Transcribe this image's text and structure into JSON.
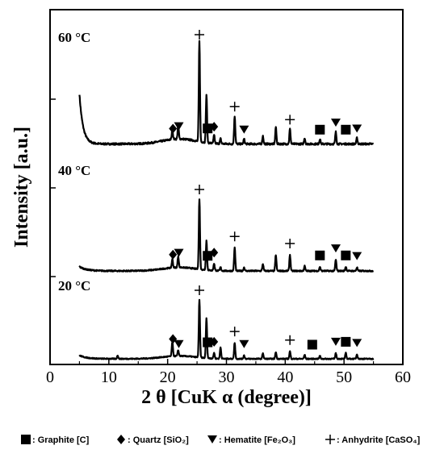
{
  "chart_data": {
    "type": "line",
    "xlabel": "2 θ  [CuK α  (degree)]",
    "ylabel": "Intensity [a.u.]",
    "xlim": [
      0,
      60
    ],
    "x_ticks": [
      0,
      10,
      20,
      30,
      40,
      50,
      60
    ],
    "y_tick_labels_shown": false,
    "series": [
      {
        "name": "60 °C",
        "baseline_x": [
          5,
          5.6,
          7,
          10,
          15,
          19,
          21,
          25,
          30,
          35,
          40,
          45,
          50,
          55
        ],
        "peaks": [
          {
            "x": 20.8,
            "h": 0.1
          },
          {
            "x": 21.8,
            "h": 0.14
          },
          {
            "x": 25.4,
            "h": 1.0
          },
          {
            "x": 26.6,
            "h": 0.48
          },
          {
            "x": 27.9,
            "h": 0.08
          },
          {
            "x": 29.0,
            "h": 0.05
          },
          {
            "x": 31.4,
            "h": 0.28
          },
          {
            "x": 33.0,
            "h": 0.05
          },
          {
            "x": 36.2,
            "h": 0.08
          },
          {
            "x": 38.4,
            "h": 0.17
          },
          {
            "x": 40.8,
            "h": 0.15
          },
          {
            "x": 43.3,
            "h": 0.06
          },
          {
            "x": 45.9,
            "h": 0.05
          },
          {
            "x": 48.6,
            "h": 0.12
          },
          {
            "x": 52.2,
            "h": 0.06
          }
        ]
      },
      {
        "name": "40 °C",
        "peaks": [
          {
            "x": 20.8,
            "h": 0.12
          },
          {
            "x": 21.8,
            "h": 0.16
          },
          {
            "x": 25.4,
            "h": 1.0
          },
          {
            "x": 26.6,
            "h": 0.42
          },
          {
            "x": 27.9,
            "h": 0.1
          },
          {
            "x": 29.0,
            "h": 0.05
          },
          {
            "x": 31.4,
            "h": 0.33
          },
          {
            "x": 33.0,
            "h": 0.05
          },
          {
            "x": 36.2,
            "h": 0.1
          },
          {
            "x": 38.4,
            "h": 0.23
          },
          {
            "x": 40.8,
            "h": 0.23
          },
          {
            "x": 43.3,
            "h": 0.07
          },
          {
            "x": 45.9,
            "h": 0.06
          },
          {
            "x": 48.6,
            "h": 0.16
          },
          {
            "x": 50.3,
            "h": 0.06
          },
          {
            "x": 52.2,
            "h": 0.05
          }
        ]
      },
      {
        "name": "20 °C",
        "peaks": [
          {
            "x": 11.5,
            "h": 0.06
          },
          {
            "x": 20.8,
            "h": 0.25
          },
          {
            "x": 21.8,
            "h": 0.1
          },
          {
            "x": 25.4,
            "h": 1.0
          },
          {
            "x": 26.6,
            "h": 0.7
          },
          {
            "x": 27.9,
            "h": 0.1
          },
          {
            "x": 29.0,
            "h": 0.2
          },
          {
            "x": 31.4,
            "h": 0.28
          },
          {
            "x": 33.0,
            "h": 0.06
          },
          {
            "x": 36.2,
            "h": 0.1
          },
          {
            "x": 38.4,
            "h": 0.12
          },
          {
            "x": 40.8,
            "h": 0.13
          },
          {
            "x": 43.3,
            "h": 0.07
          },
          {
            "x": 45.9,
            "h": 0.05
          },
          {
            "x": 48.6,
            "h": 0.1
          },
          {
            "x": 50.3,
            "h": 0.1
          },
          {
            "x": 52.2,
            "h": 0.08
          }
        ]
      }
    ],
    "annotations": [
      {
        "series": "60 °C",
        "markers": [
          {
            "sym": "diamond",
            "x": 20.9
          },
          {
            "sym": "triangle",
            "x": 21.9
          },
          {
            "sym": "plus",
            "x": 25.4
          },
          {
            "sym": "square",
            "x": 26.8
          },
          {
            "sym": "diamond",
            "x": 27.9
          },
          {
            "sym": "plus",
            "x": 31.4
          },
          {
            "sym": "triangle",
            "x": 33.0
          },
          {
            "sym": "plus",
            "x": 40.8
          },
          {
            "sym": "square",
            "x": 45.9
          },
          {
            "sym": "triangle",
            "x": 48.6
          },
          {
            "sym": "square",
            "x": 50.3
          },
          {
            "sym": "triangle",
            "x": 52.2
          }
        ]
      },
      {
        "series": "40 °C",
        "markers": [
          {
            "sym": "diamond",
            "x": 20.9
          },
          {
            "sym": "triangle",
            "x": 21.9
          },
          {
            "sym": "plus",
            "x": 25.4
          },
          {
            "sym": "square",
            "x": 26.8
          },
          {
            "sym": "diamond",
            "x": 27.9
          },
          {
            "sym": "plus",
            "x": 31.4
          },
          {
            "sym": "plus",
            "x": 40.8
          },
          {
            "sym": "square",
            "x": 45.9
          },
          {
            "sym": "triangle",
            "x": 48.6
          },
          {
            "sym": "square",
            "x": 50.3
          },
          {
            "sym": "triangle",
            "x": 52.2
          }
        ]
      },
      {
        "series": "20 °C",
        "markers": [
          {
            "sym": "diamond",
            "x": 20.9
          },
          {
            "sym": "triangle",
            "x": 21.9
          },
          {
            "sym": "plus",
            "x": 25.4
          },
          {
            "sym": "square",
            "x": 26.8
          },
          {
            "sym": "diamond",
            "x": 27.9
          },
          {
            "sym": "plus",
            "x": 31.4
          },
          {
            "sym": "triangle",
            "x": 33.0
          },
          {
            "sym": "plus",
            "x": 40.8
          },
          {
            "sym": "square",
            "x": 44.6
          },
          {
            "sym": "triangle",
            "x": 48.6
          },
          {
            "sym": "square",
            "x": 50.3
          },
          {
            "sym": "triangle",
            "x": 52.2
          }
        ]
      }
    ],
    "legend": [
      {
        "sym": "square",
        "text": ": Graphite [C]"
      },
      {
        "sym": "diamond",
        "text": ": Quartz [SiO₂]"
      },
      {
        "sym": "triangle",
        "text": ": Hematite [Fe₂O₃]"
      },
      {
        "sym": "plus",
        "text": ": Anhydrite [CaSO₄]"
      }
    ],
    "legend_position": "bottom",
    "grid": false
  }
}
